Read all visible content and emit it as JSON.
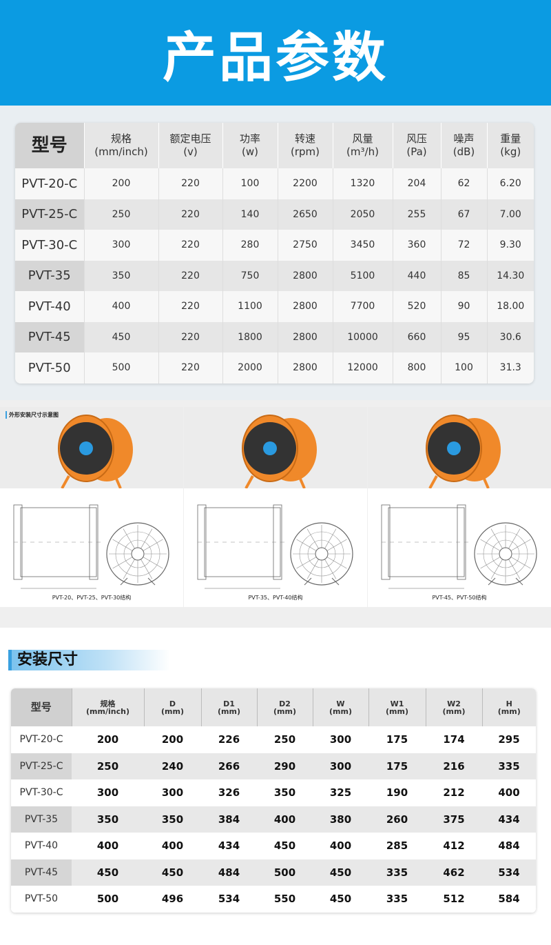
{
  "header": {
    "title": "产品参数"
  },
  "table1": {
    "headers": [
      [
        "型号",
        ""
      ],
      [
        "规格",
        "(mm/inch)"
      ],
      [
        "额定电压",
        "(v)"
      ],
      [
        "功率",
        "(w)"
      ],
      [
        "转速",
        "(rpm)"
      ],
      [
        "风量",
        "(m³/h)"
      ],
      [
        "风压",
        "(Pa)"
      ],
      [
        "噪声",
        "(dB)"
      ],
      [
        "重量",
        "(kg)"
      ]
    ],
    "rows": [
      [
        "PVT-20-C",
        "200",
        "220",
        "100",
        "2200",
        "1320",
        "204",
        "62",
        "6.20"
      ],
      [
        "PVT-25-C",
        "250",
        "220",
        "140",
        "2650",
        "2050",
        "255",
        "67",
        "7.00"
      ],
      [
        "PVT-30-C",
        "300",
        "220",
        "280",
        "2750",
        "3450",
        "360",
        "72",
        "9.30"
      ],
      [
        "PVT-35",
        "350",
        "220",
        "750",
        "2800",
        "5100",
        "440",
        "85",
        "14.30"
      ],
      [
        "PVT-40",
        "400",
        "220",
        "1100",
        "2800",
        "7700",
        "520",
        "90",
        "18.00"
      ],
      [
        "PVT-45",
        "450",
        "220",
        "1800",
        "2800",
        "10000",
        "660",
        "95",
        "30.6"
      ],
      [
        "PVT-50",
        "500",
        "220",
        "2000",
        "2800",
        "12000",
        "800",
        "100",
        "31.3"
      ]
    ]
  },
  "diagrams": {
    "title": "外形安装尺寸示意图",
    "captions": [
      "PVT-20、PVT-25、PVT-30结构",
      "PVT-35、PVT-40结构",
      "PVT-45、PVT-50结构"
    ],
    "fan_color": "#f0892a"
  },
  "section2": {
    "title": "安装尺寸"
  },
  "table2": {
    "headers": [
      [
        "型号",
        ""
      ],
      [
        "规格",
        "(mm/inch)"
      ],
      [
        "D",
        "(mm)"
      ],
      [
        "D1",
        "(mm)"
      ],
      [
        "D2",
        "(mm)"
      ],
      [
        "W",
        "(mm)"
      ],
      [
        "W1",
        "(mm)"
      ],
      [
        "W2",
        "(mm)"
      ],
      [
        "H",
        "(mm)"
      ]
    ],
    "rows": [
      [
        "PVT-20-C",
        "200",
        "200",
        "226",
        "250",
        "300",
        "175",
        "174",
        "295"
      ],
      [
        "PVT-25-C",
        "250",
        "240",
        "266",
        "290",
        "300",
        "175",
        "216",
        "335"
      ],
      [
        "PVT-30-C",
        "300",
        "300",
        "326",
        "350",
        "325",
        "190",
        "212",
        "400"
      ],
      [
        "PVT-35",
        "350",
        "350",
        "384",
        "400",
        "380",
        "260",
        "375",
        "434"
      ],
      [
        "PVT-40",
        "400",
        "400",
        "434",
        "450",
        "400",
        "285",
        "412",
        "484"
      ],
      [
        "PVT-45",
        "450",
        "450",
        "484",
        "500",
        "450",
        "335",
        "462",
        "534"
      ],
      [
        "PVT-50",
        "500",
        "496",
        "534",
        "550",
        "450",
        "335",
        "512",
        "584"
      ]
    ]
  }
}
